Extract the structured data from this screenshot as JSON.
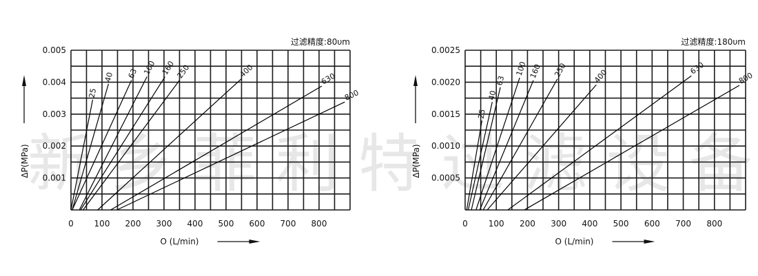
{
  "watermark": "新乡菲利特过滤设备",
  "chart_data": [
    {
      "type": "line",
      "title": "过滤精度:80υm",
      "xlabel": "O (L/min)",
      "ylabel": "ΔP(MPa)",
      "xlim": [
        0,
        900
      ],
      "ylim": [
        0,
        0.005
      ],
      "grid": true,
      "x_ticks": [
        "0",
        "100",
        "200",
        "300",
        "400",
        "500",
        "600",
        "700",
        "800"
      ],
      "y_ticks": [
        "0.001",
        "0.002",
        "0.003",
        "0.004",
        "0.005"
      ],
      "series": [
        {
          "name": "25",
          "x": [
            0,
            70
          ],
          "y": [
            0,
            0.00345
          ]
        },
        {
          "name": "40",
          "x": [
            4,
            121
          ],
          "y": [
            0,
            0.00395
          ]
        },
        {
          "name": "63",
          "x": [
            4,
            195
          ],
          "y": [
            0,
            0.00406
          ]
        },
        {
          "name": "100",
          "x": [
            27,
            245
          ],
          "y": [
            0,
            0.00417
          ]
        },
        {
          "name": "160",
          "x": [
            31,
            303
          ],
          "y": [
            0,
            0.00417
          ]
        },
        {
          "name": "250",
          "x": [
            39,
            350
          ],
          "y": [
            0,
            0.00406
          ]
        },
        {
          "name": "400",
          "x": [
            86,
            549
          ],
          "y": [
            0,
            0.0041
          ]
        },
        {
          "name": "630",
          "x": [
            128,
            809
          ],
          "y": [
            0,
            0.00388
          ]
        },
        {
          "name": "800",
          "x": [
            148,
            883
          ],
          "y": [
            0,
            0.00338
          ]
        }
      ]
    },
    {
      "type": "line",
      "title": "过滤精度:180υm",
      "xlabel": "O (L/min)",
      "ylabel": "ΔP(MPa)",
      "xlim": [
        0,
        900
      ],
      "ylim": [
        0,
        0.0025
      ],
      "grid": true,
      "x_ticks": [
        "0",
        "100",
        "200",
        "300",
        "400",
        "500",
        "600",
        "700",
        "800"
      ],
      "y_ticks": [
        "0.0005",
        "0.0010",
        "0.0015",
        "0.0020",
        "0.0025"
      ],
      "series": [
        {
          "name": "25",
          "x": [
            5,
            54
          ],
          "y": [
            0,
            0.0014
          ]
        },
        {
          "name": "40",
          "x": [
            10,
            87
          ],
          "y": [
            0,
            0.00169
          ]
        },
        {
          "name": "63",
          "x": [
            20,
            113
          ],
          "y": [
            0,
            0.00192
          ]
        },
        {
          "name": "100",
          "x": [
            35,
            175
          ],
          "y": [
            0,
            0.00207
          ]
        },
        {
          "name": "160",
          "x": [
            47,
            219
          ],
          "y": [
            0,
            0.00203
          ]
        },
        {
          "name": "250",
          "x": [
            58,
            296
          ],
          "y": [
            0,
            0.00205
          ]
        },
        {
          "name": "400",
          "x": [
            71,
            421
          ],
          "y": [
            0,
            0.00196
          ]
        },
        {
          "name": "630",
          "x": [
            137,
            726
          ],
          "y": [
            0,
            0.0021
          ]
        },
        {
          "name": "800",
          "x": [
            190,
            880
          ],
          "y": [
            0,
            0.00195
          ]
        }
      ]
    }
  ]
}
